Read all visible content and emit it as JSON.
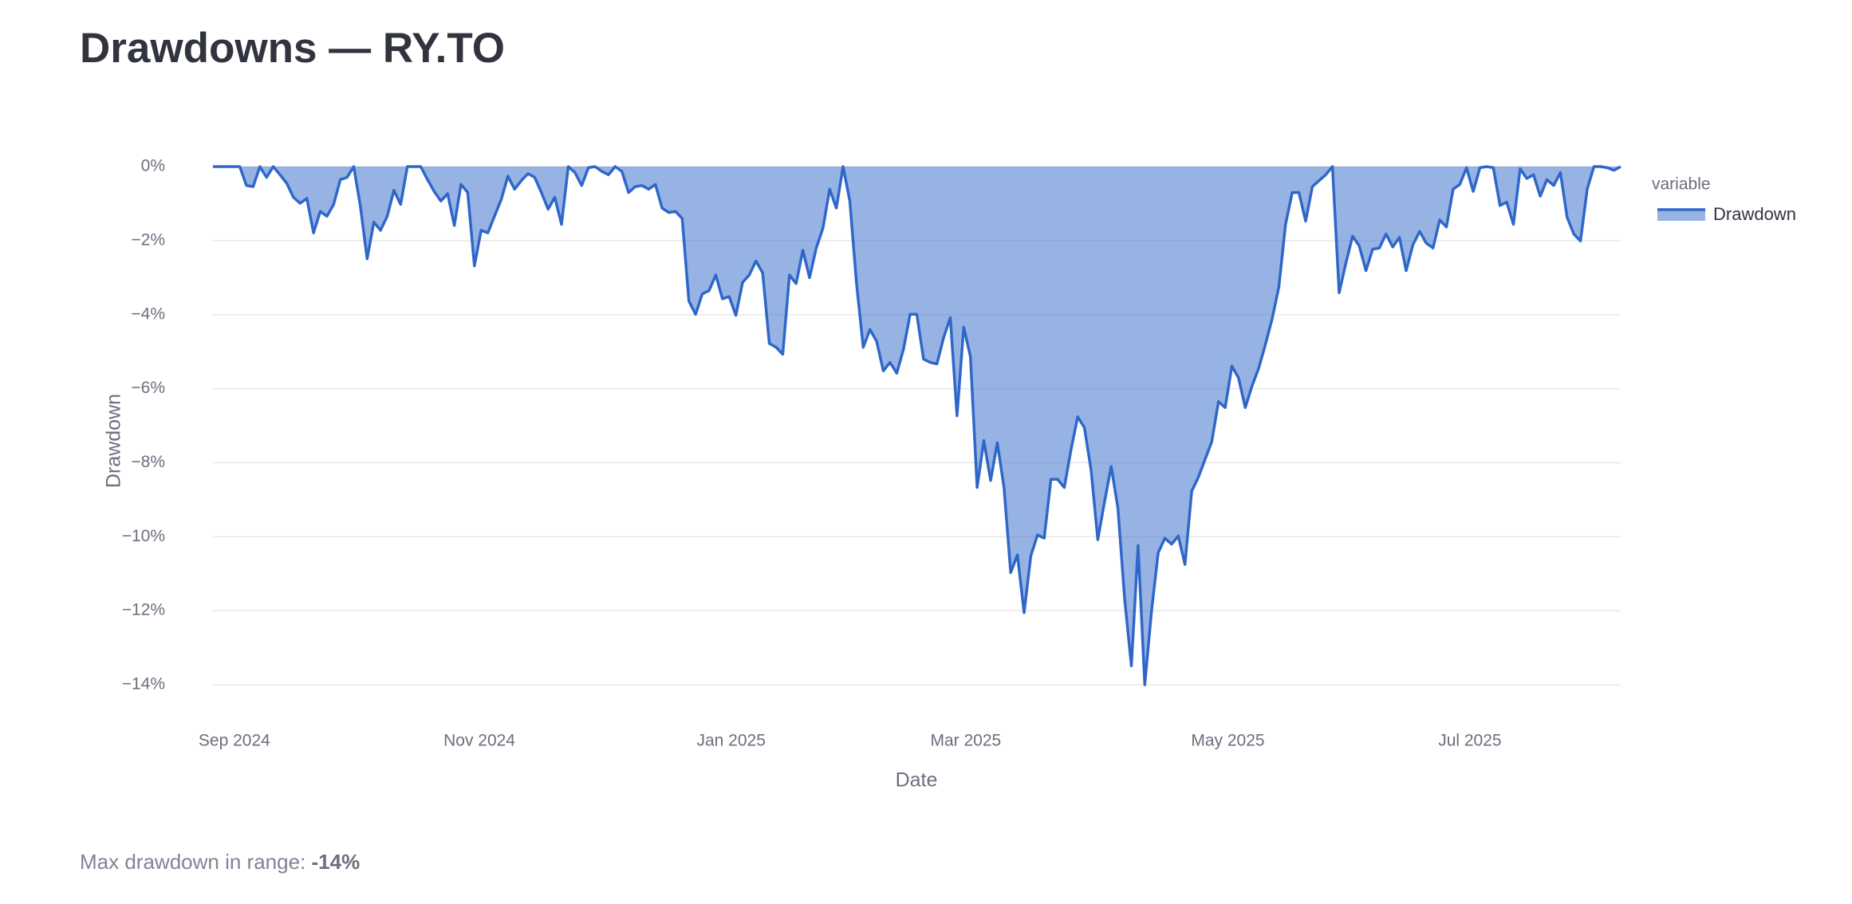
{
  "chart_data": {
    "type": "area",
    "title": "Drawdowns — RY.TO",
    "x_label": "Date",
    "y_label": "Drawdown",
    "legend_title": "variable",
    "legend": "right",
    "grid": true,
    "xlim": [
      0,
      210
    ],
    "xticks": [
      {
        "value": 3.2,
        "label": "Sep 2024"
      },
      {
        "value": 39.75,
        "label": "Nov 2024"
      },
      {
        "value": 77.3,
        "label": "Jan 2025"
      },
      {
        "value": 112.3,
        "label": "Mar 2025"
      },
      {
        "value": 151.4,
        "label": "May 2025"
      },
      {
        "value": 187.5,
        "label": "Jul 2025"
      }
    ],
    "ylim": [
      -14,
      0
    ],
    "yticks": [
      {
        "value": 0,
        "label": "0%"
      },
      {
        "value": -2,
        "label": "−2%"
      },
      {
        "value": -4,
        "label": "−4%"
      },
      {
        "value": -6,
        "label": "−6%"
      },
      {
        "value": -8,
        "label": "−8%"
      },
      {
        "value": -10,
        "label": "−10%"
      },
      {
        "value": -12,
        "label": "−12%"
      },
      {
        "value": -14,
        "label": "−14%"
      }
    ],
    "series": [
      {
        "name": "Drawdown",
        "color": "#2f67c9",
        "values": [
          0,
          0,
          0,
          0,
          0,
          -0.51,
          -0.54,
          0,
          -0.29,
          0,
          -0.22,
          -0.45,
          -0.83,
          -0.99,
          -0.86,
          -1.79,
          -1.21,
          -1.34,
          -1.02,
          -0.35,
          -0.29,
          0,
          -1.08,
          -2.49,
          -1.5,
          -1.72,
          -1.34,
          -0.64,
          -1.02,
          0,
          0,
          0,
          -0.35,
          -0.67,
          -0.93,
          -0.73,
          -1.59,
          -0.48,
          -0.7,
          -2.68,
          -1.72,
          -1.79,
          -1.34,
          -0.89,
          -0.26,
          -0.61,
          -0.38,
          -0.19,
          -0.29,
          -0.7,
          -1.15,
          -0.83,
          -1.56,
          0,
          -0.16,
          -0.51,
          -0.03,
          0,
          -0.13,
          -0.22,
          0,
          -0.13,
          -0.7,
          -0.54,
          -0.51,
          -0.61,
          -0.48,
          -1.12,
          -1.24,
          -1.21,
          -1.4,
          -3.63,
          -3.99,
          -3.44,
          -3.35,
          -2.93,
          -3.57,
          -3.51,
          -4.02,
          -3.13,
          -2.93,
          -2.55,
          -2.87,
          -4.78,
          -4.88,
          -5.07,
          -2.93,
          -3.16,
          -2.26,
          -3.0,
          -2.2,
          -1.66,
          -0.61,
          -1.12,
          0,
          -0.93,
          -3.16,
          -4.88,
          -4.4,
          -4.72,
          -5.52,
          -5.29,
          -5.58,
          -4.94,
          -3.99,
          -3.99,
          -5.2,
          -5.29,
          -5.33,
          -4.62,
          -4.08,
          -6.73,
          -4.34,
          -5.13,
          -8.67,
          -7.4,
          -8.48,
          -7.46,
          -8.67,
          -10.97,
          -10.49,
          -12.05,
          -10.52,
          -9.95,
          -10.04,
          -8.45,
          -8.45,
          -8.67,
          -7.65,
          -6.76,
          -7.05,
          -8.2,
          -10.08,
          -9.06,
          -8.1,
          -9.22,
          -11.67,
          -13.49,
          -10.24,
          -14.0,
          -12.02,
          -10.43,
          -10.04,
          -10.2,
          -9.98,
          -10.75,
          -8.77,
          -8.39,
          -7.91,
          -7.43,
          -6.35,
          -6.51,
          -5.39,
          -5.71,
          -6.51,
          -5.93,
          -5.45,
          -4.81,
          -4.11,
          -3.25,
          -1.56,
          -0.7,
          -0.7,
          -1.47,
          -0.54,
          -0.38,
          -0.22,
          0,
          -3.41,
          -2.61,
          -1.88,
          -2.14,
          -2.81,
          -2.23,
          -2.2,
          -1.82,
          -2.17,
          -1.91,
          -2.81,
          -2.11,
          -1.75,
          -2.07,
          -2.2,
          -1.44,
          -1.63,
          -0.61,
          -0.48,
          -0.03,
          -0.67,
          -0.03,
          0,
          -0.03,
          -1.05,
          -0.96,
          -1.56,
          -0.06,
          -0.32,
          -0.22,
          -0.8,
          -0.35,
          -0.51,
          -0.16,
          -1.37,
          -1.82,
          -2.01,
          -0.61,
          0,
          0,
          -0.03,
          -0.1,
          0
        ]
      }
    ]
  },
  "caption": {
    "label": "Max drawdown in range:",
    "value": "-14%"
  }
}
